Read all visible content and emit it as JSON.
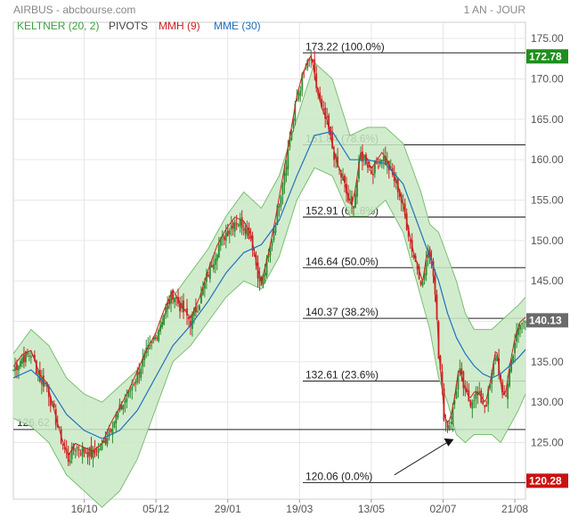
{
  "header": {
    "source": "AIRBUS - abcbourse.com",
    "period": "1 AN - JOUR"
  },
  "legend": [
    {
      "label": "KELTNER (20, 2)",
      "color": "#3c9e3c"
    },
    {
      "label": "PIVOTS",
      "color": "#444444"
    },
    {
      "label": "MMH (9)",
      "color": "#cc2222"
    },
    {
      "label": "MME (30)",
      "color": "#1f6fc0"
    }
  ],
  "chart_data": {
    "type": "candlestick",
    "ylim": [
      118,
      177
    ],
    "y_ticks": [
      "175.00",
      "170.00",
      "165.00",
      "160.00",
      "155.00",
      "150.00",
      "145.00",
      "140.00",
      "135.00",
      "130.00",
      "125.00"
    ],
    "x_ticks": [
      {
        "label": "16/10",
        "day": 80
      },
      {
        "label": "05/12",
        "day": 161
      },
      {
        "label": "29/01",
        "day": 242
      },
      {
        "label": "19/03",
        "day": 323
      },
      {
        "label": "13/05",
        "day": 404
      },
      {
        "label": "02/07",
        "day": 485
      },
      {
        "label": "21/08",
        "day": 566
      }
    ],
    "price_path": [
      [
        0,
        134.0
      ],
      [
        10,
        135.5
      ],
      [
        20,
        136.0
      ],
      [
        30,
        133.0
      ],
      [
        38,
        132.0
      ],
      [
        45,
        129.0
      ],
      [
        55,
        125.0
      ],
      [
        62,
        123.0
      ],
      [
        70,
        124.5
      ],
      [
        80,
        124.0
      ],
      [
        90,
        123.5
      ],
      [
        100,
        124.5
      ],
      [
        110,
        127.0
      ],
      [
        120,
        129.0
      ],
      [
        130,
        131.0
      ],
      [
        140,
        133.5
      ],
      [
        150,
        136.0
      ],
      [
        160,
        138.0
      ],
      [
        170,
        141.0
      ],
      [
        180,
        143.5
      ],
      [
        190,
        141.5
      ],
      [
        200,
        140.0
      ],
      [
        210,
        142.5
      ],
      [
        220,
        146.0
      ],
      [
        230,
        149.0
      ],
      [
        240,
        151.0
      ],
      [
        250,
        152.5
      ],
      [
        260,
        152.0
      ],
      [
        268,
        150.5
      ],
      [
        275,
        146.5
      ],
      [
        280,
        144.5
      ],
      [
        288,
        148.0
      ],
      [
        296,
        152.5
      ],
      [
        305,
        158.0
      ],
      [
        312,
        162.5
      ],
      [
        320,
        167.5
      ],
      [
        326,
        170.0
      ],
      [
        331,
        171.5
      ],
      [
        336,
        172.5
      ],
      [
        342,
        169.0
      ],
      [
        348,
        166.0
      ],
      [
        354,
        164.5
      ],
      [
        360,
        161.5
      ],
      [
        366,
        159.0
      ],
      [
        372,
        157.5
      ],
      [
        378,
        155.0
      ],
      [
        382,
        154.0
      ],
      [
        386,
        156.0
      ],
      [
        392,
        160.5
      ],
      [
        398,
        160.0
      ],
      [
        404,
        158.5
      ],
      [
        410,
        159.5
      ],
      [
        416,
        160.5
      ],
      [
        422,
        159.5
      ],
      [
        428,
        158.0
      ],
      [
        434,
        156.5
      ],
      [
        440,
        154.0
      ],
      [
        446,
        151.0
      ],
      [
        452,
        148.0
      ],
      [
        458,
        146.0
      ],
      [
        462,
        144.5
      ],
      [
        466,
        147.5
      ],
      [
        470,
        148.5
      ],
      [
        474,
        146.0
      ],
      [
        478,
        141.0
      ],
      [
        480,
        136.0
      ],
      [
        483,
        132.5
      ],
      [
        486,
        128.5
      ],
      [
        489,
        127.0
      ],
      [
        493,
        127.5
      ],
      [
        497,
        129.5
      ],
      [
        503,
        134.0
      ],
      [
        509,
        131.5
      ],
      [
        515,
        130.0
      ],
      [
        521,
        131.0
      ],
      [
        527,
        130.5
      ],
      [
        533,
        129.5
      ],
      [
        539,
        132.5
      ],
      [
        545,
        136.5
      ],
      [
        548,
        134.0
      ],
      [
        552,
        130.5
      ],
      [
        556,
        131.0
      ],
      [
        560,
        134.0
      ],
      [
        566,
        137.5
      ],
      [
        572,
        139.5
      ],
      [
        578,
        140.13
      ]
    ],
    "keltner_upper": [
      [
        0,
        136
      ],
      [
        20,
        139
      ],
      [
        40,
        137
      ],
      [
        60,
        133
      ],
      [
        80,
        131
      ],
      [
        100,
        130
      ],
      [
        120,
        132
      ],
      [
        140,
        134
      ],
      [
        160,
        138
      ],
      [
        180,
        143
      ],
      [
        200,
        146
      ],
      [
        220,
        149
      ],
      [
        240,
        153
      ],
      [
        260,
        156
      ],
      [
        280,
        154
      ],
      [
        300,
        158
      ],
      [
        320,
        165
      ],
      [
        340,
        172
      ],
      [
        360,
        170
      ],
      [
        380,
        163
      ],
      [
        400,
        164
      ],
      [
        420,
        164
      ],
      [
        440,
        162
      ],
      [
        460,
        156
      ],
      [
        470,
        152
      ],
      [
        480,
        151
      ],
      [
        490,
        148
      ],
      [
        500,
        145
      ],
      [
        510,
        141
      ],
      [
        520,
        139
      ],
      [
        530,
        139
      ],
      [
        540,
        139
      ],
      [
        550,
        140
      ],
      [
        560,
        141
      ],
      [
        570,
        142
      ],
      [
        578,
        143
      ]
    ],
    "keltner_lower": [
      [
        0,
        128
      ],
      [
        20,
        127
      ],
      [
        40,
        125
      ],
      [
        60,
        121
      ],
      [
        80,
        119
      ],
      [
        100,
        117
      ],
      [
        120,
        119
      ],
      [
        140,
        123
      ],
      [
        160,
        129
      ],
      [
        180,
        135
      ],
      [
        200,
        137
      ],
      [
        220,
        140
      ],
      [
        240,
        143
      ],
      [
        260,
        145
      ],
      [
        280,
        144
      ],
      [
        300,
        148
      ],
      [
        320,
        155
      ],
      [
        340,
        159
      ],
      [
        360,
        158
      ],
      [
        380,
        153
      ],
      [
        400,
        153
      ],
      [
        420,
        155
      ],
      [
        440,
        151
      ],
      [
        460,
        143
      ],
      [
        470,
        139
      ],
      [
        480,
        133
      ],
      [
        490,
        130
      ],
      [
        500,
        126
      ],
      [
        510,
        125
      ],
      [
        520,
        126
      ],
      [
        530,
        126
      ],
      [
        540,
        126
      ],
      [
        550,
        125
      ],
      [
        560,
        127
      ],
      [
        570,
        129
      ],
      [
        578,
        131
      ]
    ],
    "mme30": [
      [
        0,
        133
      ],
      [
        20,
        134
      ],
      [
        40,
        132
      ],
      [
        60,
        128.5
      ],
      [
        80,
        126.5
      ],
      [
        100,
        125.5
      ],
      [
        120,
        126.5
      ],
      [
        140,
        129
      ],
      [
        160,
        133
      ],
      [
        180,
        137
      ],
      [
        200,
        139.5
      ],
      [
        220,
        142.5
      ],
      [
        240,
        146
      ],
      [
        260,
        148.5
      ],
      [
        280,
        149.5
      ],
      [
        300,
        152.5
      ],
      [
        320,
        158
      ],
      [
        340,
        163
      ],
      [
        360,
        163.5
      ],
      [
        380,
        160
      ],
      [
        400,
        160
      ],
      [
        420,
        159.5
      ],
      [
        440,
        157
      ],
      [
        460,
        151
      ],
      [
        480,
        145
      ],
      [
        490,
        141
      ],
      [
        500,
        138
      ],
      [
        510,
        136
      ],
      [
        520,
        134.5
      ],
      [
        530,
        133.5
      ],
      [
        540,
        133
      ],
      [
        550,
        133.5
      ],
      [
        560,
        134.5
      ],
      [
        570,
        135.5
      ],
      [
        578,
        136.5
      ]
    ],
    "fibonacci": [
      {
        "label": "173.22  (100.0%)",
        "value": 173.22
      },
      {
        "label": "161.84  (78.6%)",
        "value": 161.84
      },
      {
        "label": "152.91  (61.8%)",
        "value": 152.91
      },
      {
        "label": "146.64  (50.0%)",
        "value": 146.64
      },
      {
        "label": "140.37  (38.2%)",
        "value": 140.37
      },
      {
        "label": "132.61  (23.6%)",
        "value": 132.61
      },
      {
        "label": "120.06  (0.0%)",
        "value": 120.06
      }
    ],
    "pivot": {
      "label": "126.62",
      "value": 126.62
    },
    "tags": [
      {
        "label": "172.78",
        "value": 172.78,
        "color": "#1e8f1e"
      },
      {
        "label": "140.13",
        "value": 140.13,
        "color": "#6b6b6b"
      },
      {
        "label": "120.28",
        "value": 120.28,
        "color": "#cc1111"
      }
    ],
    "arrow": {
      "from": {
        "day": 430,
        "value": 121.0
      },
      "to": {
        "day": 495,
        "value": 125.3
      }
    }
  }
}
